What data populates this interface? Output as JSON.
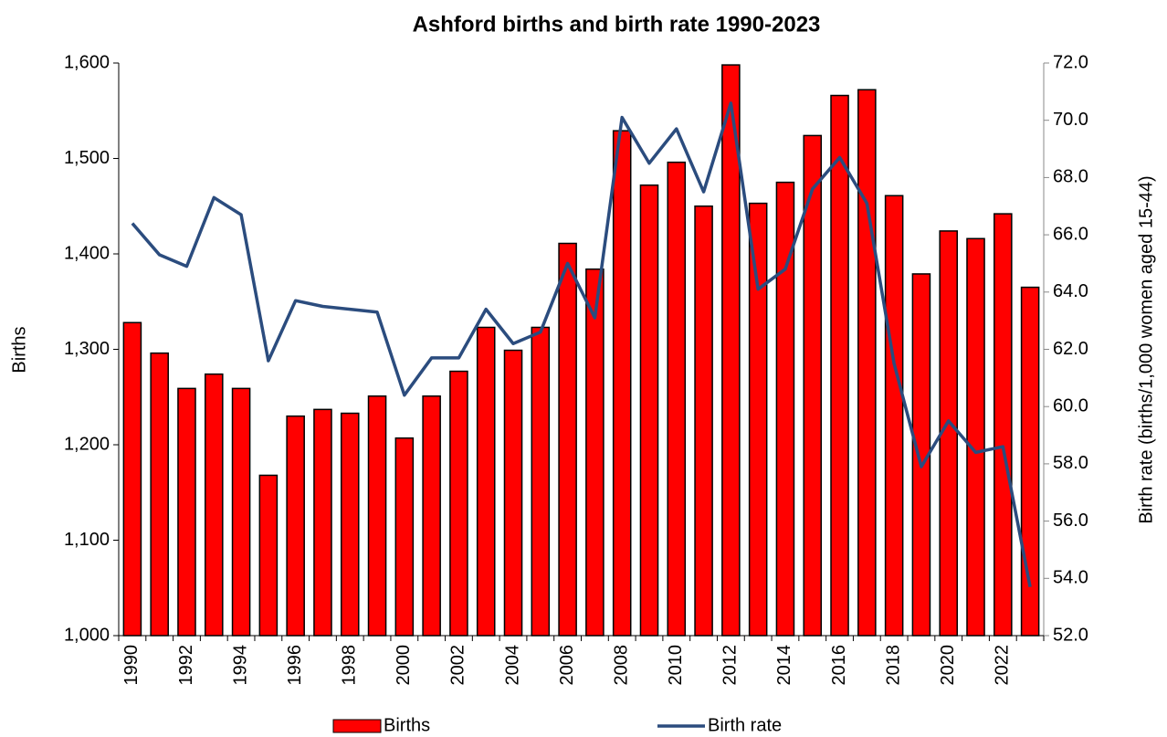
{
  "chart_data": {
    "type": "bar_line",
    "title": "Ashford births and birth rate 1990-2023",
    "y_label": "Births",
    "y2_label": "Birth rate (births/1,000 women aged 15-44)",
    "categories": [
      "1990",
      null,
      "1992",
      null,
      "1994",
      null,
      "1996",
      null,
      "1998",
      null,
      "2000",
      null,
      "2002",
      null,
      "2004",
      null,
      "2006",
      null,
      "2008",
      null,
      "2010",
      null,
      "2012",
      null,
      "2014",
      null,
      "2016",
      null,
      "2018",
      null,
      "2020",
      null,
      "2022",
      null
    ],
    "series": [
      {
        "name": "Births",
        "type": "bar",
        "color": "#ff0000",
        "axis": "y",
        "values": [
          1328,
          1296,
          1259,
          1274,
          1259,
          1168,
          1230,
          1237,
          1233,
          1251,
          1207,
          1251,
          1277,
          1323,
          1299,
          1323,
          1411,
          1384,
          1529,
          1472,
          1496,
          1450,
          1598,
          1453,
          1475,
          1524,
          1566,
          1572,
          1461,
          1379,
          1424,
          1416,
          1442,
          1365
        ]
      },
      {
        "name": "Birth rate",
        "type": "line",
        "color": "#2b4c7e",
        "axis": "y2",
        "values": [
          66.4,
          65.3,
          64.9,
          67.3,
          66.7,
          61.6,
          63.7,
          63.5,
          63.4,
          63.3,
          60.4,
          61.7,
          61.7,
          63.4,
          62.2,
          62.6,
          65.0,
          63.1,
          70.1,
          68.5,
          69.7,
          67.5,
          70.6,
          64.1,
          64.8,
          67.6,
          68.7,
          67.1,
          61.5,
          57.9,
          59.5,
          58.4,
          58.6,
          53.7
        ]
      }
    ],
    "ylim": [
      1000,
      1600
    ],
    "yticks": [
      {
        "value": 1000,
        "label": "1,000"
      },
      {
        "value": 1100,
        "label": "1,100"
      },
      {
        "value": 1200,
        "label": "1,200"
      },
      {
        "value": 1300,
        "label": "1,300"
      },
      {
        "value": 1400,
        "label": "1,400"
      },
      {
        "value": 1500,
        "label": "1,500"
      },
      {
        "value": 1600,
        "label": "1,600"
      }
    ],
    "y2lim": [
      52,
      72
    ],
    "y2ticks": [
      {
        "value": 52,
        "label": "52.0"
      },
      {
        "value": 54,
        "label": "54.0"
      },
      {
        "value": 56,
        "label": "56.0"
      },
      {
        "value": 58,
        "label": "58.0"
      },
      {
        "value": 60,
        "label": "60.0"
      },
      {
        "value": 62,
        "label": "62.0"
      },
      {
        "value": 64,
        "label": "64.0"
      },
      {
        "value": 66,
        "label": "66.0"
      },
      {
        "value": 68,
        "label": "68.0"
      },
      {
        "value": 70,
        "label": "70.0"
      },
      {
        "value": 72,
        "label": "72.0"
      }
    ],
    "grid": false,
    "legend": "bottom"
  }
}
